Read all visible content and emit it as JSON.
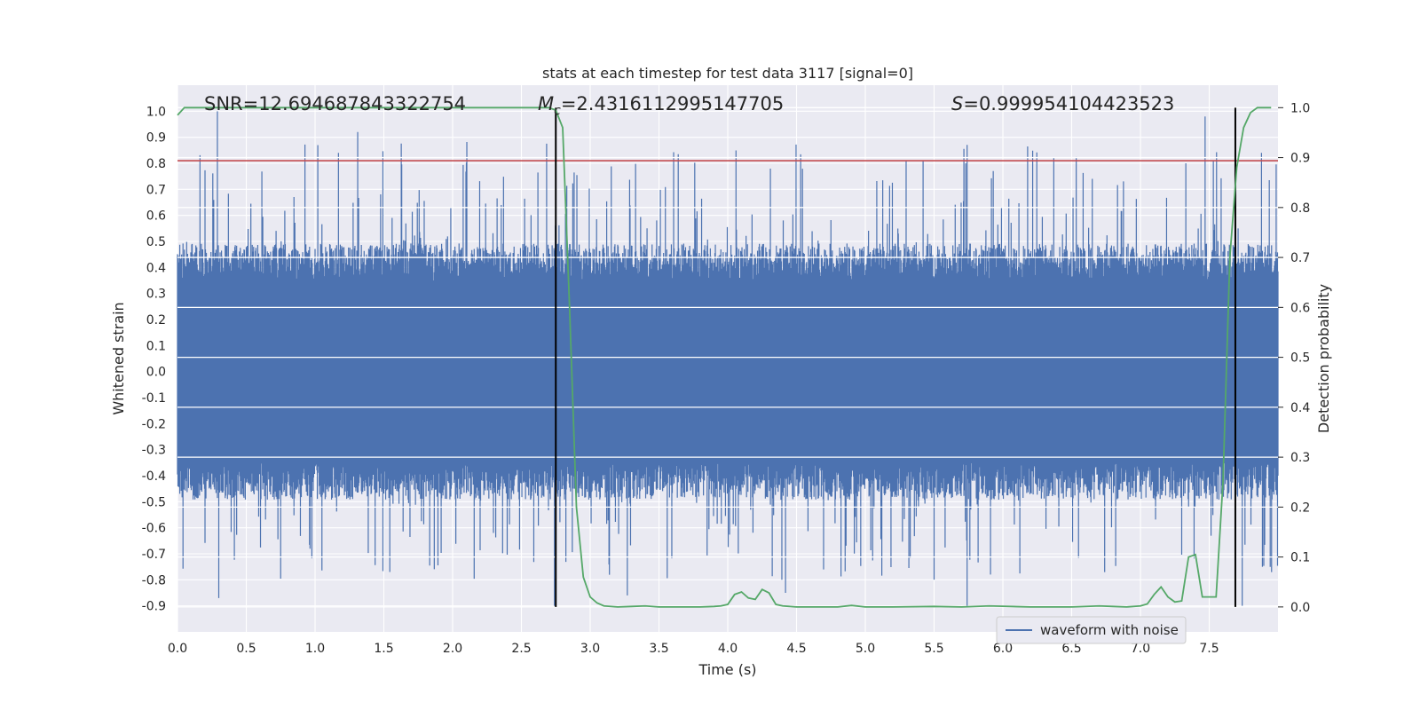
{
  "chart_data": {
    "type": "line",
    "title": "stats at each timestep for test data 3117 [signal=0]",
    "xlabel": "Time (s)",
    "ylabel": "Whitened strain",
    "ylabel_right": "Detection probability",
    "xlim": [
      0.0,
      8.0
    ],
    "ylim": [
      -1.0,
      1.1
    ],
    "ylim_right": [
      -0.05,
      1.045
    ],
    "x_ticks": [
      "0.0",
      "0.5",
      "1.0",
      "1.5",
      "2.0",
      "2.5",
      "3.0",
      "3.5",
      "4.0",
      "4.5",
      "5.0",
      "5.5",
      "6.0",
      "6.5",
      "7.0",
      "7.5"
    ],
    "y_ticks": [
      "-0.9",
      "-0.8",
      "-0.7",
      "-0.6",
      "-0.5",
      "-0.4",
      "-0.3",
      "-0.2",
      "-0.1",
      "0.0",
      "0.1",
      "0.2",
      "0.3",
      "0.4",
      "0.5",
      "0.6",
      "0.7",
      "0.8",
      "0.9",
      "1.0"
    ],
    "y_ticks_right": [
      "0.0",
      "0.1",
      "0.2",
      "0.3",
      "0.4",
      "0.5",
      "0.6",
      "0.7",
      "0.8",
      "0.9",
      "1.0"
    ],
    "grid": true,
    "legend_position": "lower-right",
    "annotations": {
      "snr": "SNR=12.694687843322754",
      "mc_symbol": "M",
      "mc_sub": "c",
      "mc_value": "=2.4316112995147705",
      "s_symbol": "S",
      "s_value": "=0.999954104423523"
    },
    "threshold_line": {
      "y": 0.81,
      "color": "#c44e52"
    },
    "vertical_lines": [
      2.75,
      7.69
    ],
    "series": [
      {
        "name": "waveform with noise",
        "color": "#4c72b0",
        "envelope": {
          "dense_amplitude": 0.41,
          "max": 1.0,
          "min": -0.9
        },
        "notable_peaks": [
          {
            "x": 0.29,
            "y": 1.0
          },
          {
            "x": 1.02,
            "y": 0.87
          },
          {
            "x": 1.17,
            "y": 0.84
          },
          {
            "x": 1.31,
            "y": 0.92
          },
          {
            "x": 5.73,
            "y": 0.8
          },
          {
            "x": 7.33,
            "y": 0.8
          },
          {
            "x": 7.47,
            "y": 0.98
          },
          {
            "x": 7.88,
            "y": 0.84
          }
        ],
        "notable_troughs": [
          {
            "x": 0.3,
            "y": -0.87
          },
          {
            "x": 2.74,
            "y": -0.9
          },
          {
            "x": 3.27,
            "y": -0.86
          },
          {
            "x": 4.42,
            "y": -0.85
          },
          {
            "x": 5.74,
            "y": -0.9
          },
          {
            "x": 7.74,
            "y": -0.9
          }
        ]
      },
      {
        "name": "",
        "color": "#55a868",
        "axis": "right",
        "x": [
          0.0,
          0.05,
          0.1,
          2.6,
          2.7,
          2.75,
          2.8,
          2.85,
          2.9,
          2.95,
          3.0,
          3.05,
          3.1,
          3.2,
          3.3,
          3.4,
          3.5,
          3.6,
          3.8,
          3.9,
          3.95,
          4.0,
          4.05,
          4.1,
          4.15,
          4.2,
          4.25,
          4.3,
          4.35,
          4.4,
          4.5,
          4.6,
          4.8,
          4.9,
          5.0,
          5.2,
          5.5,
          5.7,
          5.9,
          6.2,
          6.5,
          6.7,
          6.8,
          6.9,
          7.0,
          7.05,
          7.1,
          7.15,
          7.2,
          7.25,
          7.3,
          7.35,
          7.4,
          7.45,
          7.5,
          7.55,
          7.6,
          7.65,
          7.7,
          7.75,
          7.8,
          7.85,
          7.9,
          7.95
        ],
        "values": [
          0.985,
          1.0,
          1.0,
          1.0,
          1.0,
          0.995,
          0.96,
          0.6,
          0.2,
          0.06,
          0.02,
          0.008,
          0.002,
          0.0,
          0.001,
          0.002,
          0.0,
          0.0,
          0.0,
          0.001,
          0.002,
          0.005,
          0.025,
          0.03,
          0.018,
          0.015,
          0.035,
          0.028,
          0.005,
          0.002,
          0.0,
          0.0,
          0.0,
          0.003,
          0.0,
          0.0,
          0.001,
          0.0,
          0.002,
          0.0,
          0.0,
          0.002,
          0.001,
          0.0,
          0.002,
          0.006,
          0.025,
          0.04,
          0.02,
          0.01,
          0.012,
          0.1,
          0.105,
          0.02,
          0.02,
          0.02,
          0.25,
          0.7,
          0.88,
          0.96,
          0.99,
          1.0,
          1.0,
          1.0
        ]
      }
    ]
  }
}
